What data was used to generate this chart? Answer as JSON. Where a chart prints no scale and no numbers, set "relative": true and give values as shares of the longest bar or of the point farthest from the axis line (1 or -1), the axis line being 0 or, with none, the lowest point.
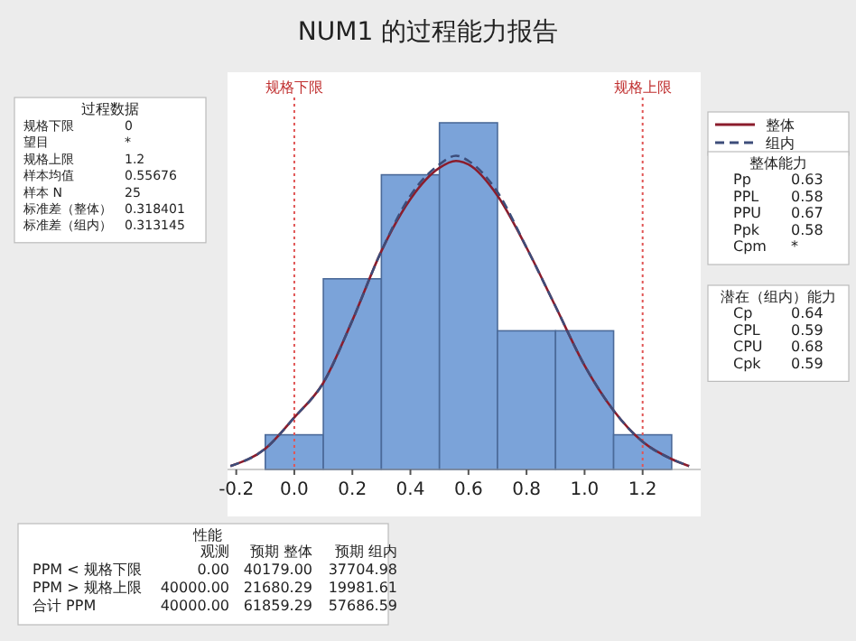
{
  "chart_data": [
    {
      "type": "histogram",
      "title": "NUM1 的过程能力报告",
      "relative": true,
      "bins": [
        -0.1,
        0.1,
        0.3,
        0.5,
        0.7,
        0.9,
        1.1,
        1.3
      ],
      "values": [
        0.1,
        0.55,
        0.85,
        1,
        0.4,
        0.4,
        0.1
      ],
      "color": "#7ba3d9",
      "xlim": [
        -0.23,
        1.4
      ],
      "xticks": [
        {
          "value": -0.2,
          "label": "-0.2"
        },
        {
          "value": 0,
          "label": "0.0"
        },
        {
          "value": 0.2,
          "label": "0.2"
        },
        {
          "value": 0.4,
          "label": "0.4"
        },
        {
          "value": 0.6,
          "label": "0.6"
        },
        {
          "value": 0.8,
          "label": "0.8"
        },
        {
          "value": 1,
          "label": "1.0"
        },
        {
          "value": 1.2,
          "label": "1.2"
        }
      ],
      "grid": false,
      "legend": "right",
      "series": [
        {
          "name": "整体",
          "type": "line",
          "line_style": "solid",
          "color": "#8b1c2c",
          "x": [
            -0.22,
            -0.1,
            0,
            0.1,
            0.2,
            0.3,
            0.4,
            0.5,
            0.557,
            0.6,
            0.7,
            0.8,
            0.9,
            1,
            1.1,
            1.2,
            1.3,
            1.36
          ],
          "values": [
            0.01,
            0.06,
            0.15,
            0.25,
            0.43,
            0.63,
            0.78,
            0.87,
            0.89,
            0.88,
            0.79,
            0.64,
            0.47,
            0.3,
            0.17,
            0.08,
            0.03,
            0.01
          ]
        },
        {
          "name": "组内",
          "type": "line",
          "line_style": "dashed",
          "color": "#3d4d7a",
          "x": [
            -0.22,
            -0.1,
            0,
            0.1,
            0.2,
            0.3,
            0.4,
            0.5,
            0.557,
            0.6,
            0.7,
            0.8,
            0.9,
            1,
            1.1,
            1.2,
            1.3,
            1.36
          ],
          "values": [
            0.01,
            0.06,
            0.15,
            0.25,
            0.43,
            0.63,
            0.79,
            0.88,
            0.905,
            0.89,
            0.8,
            0.64,
            0.47,
            0.3,
            0.17,
            0.08,
            0.03,
            0.01
          ]
        }
      ],
      "ref_lines": [
        {
          "axis": "x",
          "value": 0,
          "label": "规格下限",
          "color": "#e05555",
          "line_style": "dotted"
        },
        {
          "axis": "x",
          "value": 1.2,
          "label": "规格上限",
          "color": "#e05555",
          "line_style": "dotted"
        }
      ]
    },
    {
      "type": "other",
      "title": "过程数据",
      "annotations": [
        "规格下限\t0",
        "望目\t*",
        "规格上限\t1.2",
        "样本均值\t0.55676",
        "样本 N\t25",
        "标准差（整体）\t0.318401",
        "标准差（组内）\t0.313145"
      ]
    },
    {
      "type": "other",
      "title": "整体能力",
      "annotations": [
        "Pp\t0.63",
        "PPL\t0.58",
        "PPU\t0.67",
        "Ppk\t0.58",
        "Cpm\t*"
      ]
    },
    {
      "type": "other",
      "title": "潜在（组内）能力",
      "annotations": [
        "Cp\t0.64",
        "CPL\t0.59",
        "CPU\t0.68",
        "Cpk\t0.59"
      ]
    },
    {
      "type": "other",
      "title": "性能",
      "annotations": [
        "\t观测\t预期 整体\t预期 组内",
        "PPM < 规格下限\t0.00\t40179.00\t37704.98",
        "PPM > 规格上限\t40000.00\t21680.29\t19981.61",
        "合计 PPM\t40000.00\t61859.29\t57686.59"
      ]
    }
  ]
}
